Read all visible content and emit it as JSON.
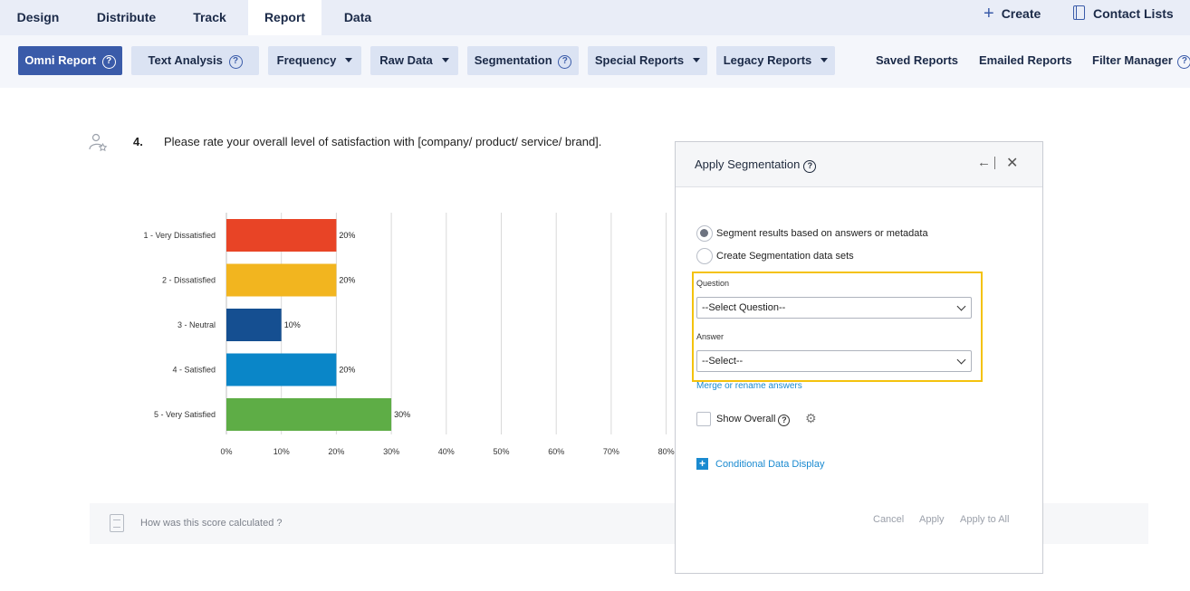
{
  "topnav": {
    "tabs": [
      "Design",
      "Distribute",
      "Track",
      "Report",
      "Data"
    ],
    "active_tab": "Report",
    "create_label": "Create",
    "contact_lists_label": "Contact Lists"
  },
  "toolbar": {
    "omni_report": "Omni Report",
    "text_analysis": "Text Analysis",
    "frequency": "Frequency",
    "raw_data": "Raw Data",
    "segmentation": "Segmentation",
    "special_reports": "Special Reports",
    "legacy_reports": "Legacy Reports",
    "saved_reports": "Saved Reports",
    "emailed_reports": "Emailed Reports",
    "filter_manager": "Filter Manager"
  },
  "question": {
    "number": "4.",
    "text": "Please rate your overall level of satisfaction with [company/ product/ service/ brand]."
  },
  "chart_data": {
    "type": "bar",
    "orientation": "horizontal",
    "categories": [
      "1 - Very Dissatisfied",
      "2 - Dissatisfied",
      "3 - Neutral",
      "4 - Satisfied",
      "5 - Very Satisfied"
    ],
    "values": [
      20,
      20,
      10,
      20,
      30
    ],
    "value_labels": [
      "20%",
      "20%",
      "10%",
      "20%",
      "30%"
    ],
    "colors": [
      "#e84426",
      "#f2b51f",
      "#154f91",
      "#0a86c8",
      "#5ead46"
    ],
    "xticks": [
      "0%",
      "10%",
      "20%",
      "30%",
      "40%",
      "50%",
      "60%",
      "70%",
      "80%"
    ],
    "xlim": [
      0,
      80
    ],
    "grid": true
  },
  "footer": {
    "text": "How was this score calculated ?"
  },
  "panel": {
    "title": "Apply Segmentation",
    "radio_segment": "Segment results based on answers or metadata",
    "radio_create": "Create Segmentation data sets",
    "question_label": "Question",
    "question_value": "--Select Question--",
    "answer_label": "Answer",
    "answer_value": "--Select--",
    "merge_link": "Merge or rename answers",
    "show_overall": "Show Overall",
    "conditional": "Conditional Data Display",
    "cancel": "Cancel",
    "apply": "Apply",
    "apply_all": "Apply to All"
  }
}
